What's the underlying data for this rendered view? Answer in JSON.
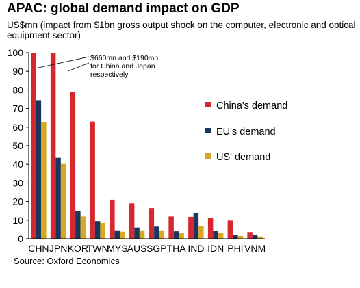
{
  "title": "APAC: global demand impact on GDP",
  "subtitle": "US$mn (impact from $1bn gross output shock on the computer, electronic and optical equipment sector)",
  "source": "Source: Oxford Economics",
  "chart_data": {
    "type": "bar",
    "categories": [
      "CHN",
      "JPN",
      "KOR",
      "TWN",
      "MYS",
      "AUS",
      "SGP",
      "THA",
      "IND",
      "IDN",
      "PHI",
      "VNM"
    ],
    "series": [
      {
        "name": "China's demand",
        "color": "#d7282f",
        "values": [
          100,
          100,
          79,
          63,
          21,
          19,
          16.5,
          12,
          11.8,
          11.2,
          9.8,
          3.6
        ]
      },
      {
        "name": "EU's demand",
        "color": "#17375e",
        "values": [
          74.5,
          43.5,
          15,
          9.5,
          4.5,
          6,
          6.5,
          4,
          13.8,
          4.2,
          2,
          2
        ]
      },
      {
        "name": "US' demand",
        "color": "#d6a823",
        "values": [
          62.5,
          40.2,
          12,
          8.5,
          3.8,
          4.5,
          4.5,
          3,
          6.8,
          3.2,
          1.5,
          1.2
        ]
      }
    ],
    "yticks": [
      0,
      10,
      20,
      30,
      40,
      50,
      60,
      70,
      80,
      90,
      100
    ],
    "ylim": [
      0,
      100
    ],
    "legend_position": "right",
    "annotation": {
      "lines": [
        "$660mn and $190mn",
        "for China and Japan",
        "respectively"
      ]
    }
  }
}
